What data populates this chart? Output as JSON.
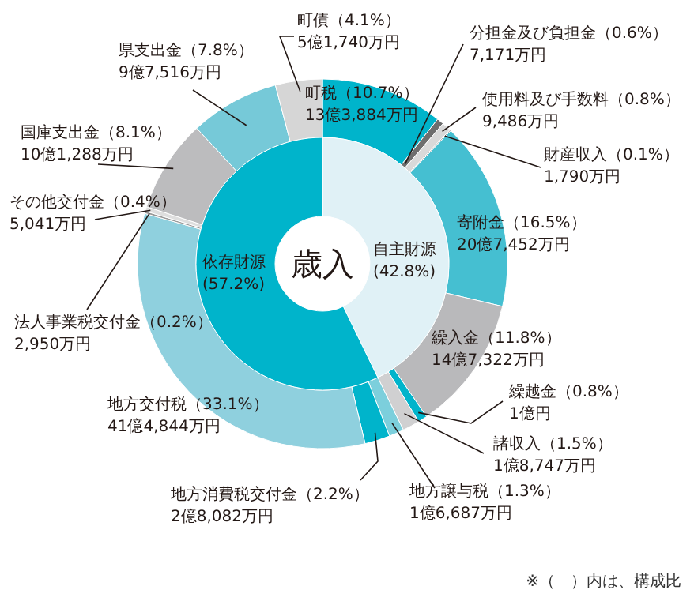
{
  "chart_data": [
    {
      "type": "donut",
      "title": "歳入",
      "categories": [
        "自主財源",
        "依存財源"
      ],
      "values": [
        42.8,
        57.2
      ],
      "colors": [
        "#e0f1f6",
        "#00b4cb"
      ],
      "value_labels": [
        "\n(42.8%)",
        "\n(57.2%)"
      ]
    },
    {
      "type": "donut",
      "categories": [
        "町税",
        "分担金及び負担金",
        "使用料及び手数料",
        "財産収入",
        "寄附金",
        "繰入金",
        "繰越金",
        "諸収入",
        "地方譲与税",
        "地方消費税交付金",
        "地方交付税",
        "法人事業税交付金",
        "その他交付金",
        "国庫支出金",
        "県支出金",
        "町債"
      ],
      "values": [
        10.7,
        0.6,
        0.8,
        0.1,
        16.5,
        11.8,
        0.8,
        1.5,
        1.3,
        2.2,
        33.1,
        0.2,
        0.4,
        8.1,
        7.8,
        4.1
      ],
      "colors": [
        "#00b4cb",
        "#6e6e6e",
        "#d9d9d9",
        "#9a9a9a",
        "#45bfd1",
        "#b9b9bb",
        "#00b4cb",
        "#d0d0d1",
        "#7ccfdc",
        "#00b4cb",
        "#8fd0de",
        "#9a9a9a",
        "#dedede",
        "#bcbcbe",
        "#76c9d8",
        "#d6d6d6"
      ],
      "value_labels": [
        "（10.7%）\n13億3,884万円",
        "（0.6%）\n7,171万円",
        "（0.8%）\n9,486万円",
        "（0.1%）\n1,790万円",
        "（16.5%）\n20億7,452万円",
        "（11.8%）\n14億7,322万円",
        "（0.8%）\n1億円",
        "（1.5%）\n1億8,747万円",
        "（1.3%）\n1億6,687万円",
        "（2.2%）\n2億8,082万円",
        "（33.1%）\n41億4,844万円",
        "（0.2%）\n2,950万円",
        "（0.4%）\n5,041万円",
        "（8.1%）\n10億1,288万円",
        "（7.8%）\n9億7,516万円",
        "（4.1%）\n5億1,740万円"
      ],
      "annotations": [
        "※（　）内は、構成比"
      ]
    }
  ]
}
